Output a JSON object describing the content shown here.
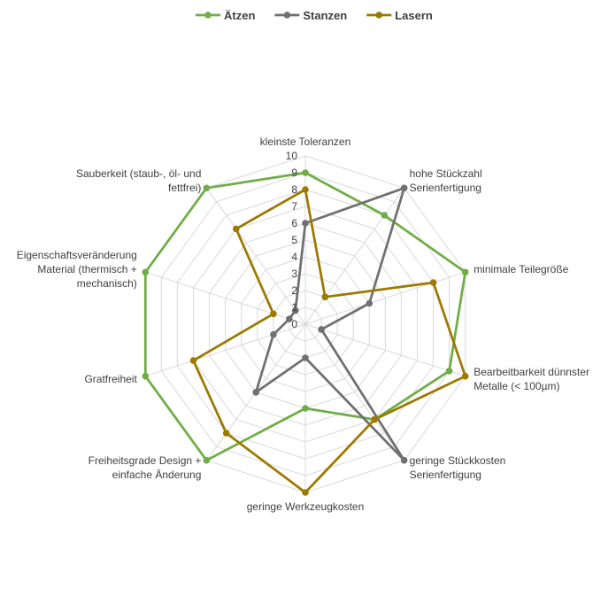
{
  "chart_data": {
    "type": "radar",
    "categories": [
      "kleinste Toleranzen",
      "hohe Stückzahl Serienfertigung",
      "minimale Teilegröße",
      "Bearbeitbarkeit dünnster Metalle (< 100µm)",
      "geringe Stückkosten Serienfertigung",
      "geringe Werkzeugkosten",
      "Freiheitsgrade Design + einfache Änderung",
      "Gratfreiheit",
      "Eigenschaftsveränderung Material (thermisch + mechanisch)",
      "Sauberkeit (staub-, öl- und fettfrei)"
    ],
    "category_lines": [
      [
        "kleinste Toleranzen"
      ],
      [
        "hohe Stückzahl",
        "Serienfertigung"
      ],
      [
        "minimale Teilegröße"
      ],
      [
        "Bearbeitbarkeit dünnster",
        "Metalle (< 100µm)"
      ],
      [
        "geringe Stückkosten",
        "Serienfertigung"
      ],
      [
        "geringe Werkzeugkosten"
      ],
      [
        "Freiheitsgrade Design +",
        "einfache Änderung"
      ],
      [
        "Gratfreiheit"
      ],
      [
        "Eigenschaftsveränderung",
        "Material (thermisch +",
        "mechanisch)"
      ],
      [
        "Sauberkeit (staub-, öl- und",
        "fettfrei)"
      ]
    ],
    "series": [
      {
        "name": "Ätzen",
        "color": "#70ad47",
        "values": [
          9,
          8,
          10,
          9,
          7,
          5,
          10,
          10,
          10,
          10
        ]
      },
      {
        "name": "Stanzen",
        "color": "#707070",
        "values": [
          6,
          10,
          4,
          1,
          10,
          2,
          5,
          2,
          1,
          1
        ]
      },
      {
        "name": "Lasern",
        "color": "#9c7a00",
        "values": [
          8,
          2,
          8,
          10,
          7,
          10,
          8,
          7,
          2,
          7
        ]
      }
    ],
    "rlim": [
      0,
      10
    ],
    "ticks": [
      "0",
      "1",
      "2",
      "3",
      "4",
      "5",
      "6",
      "7",
      "8",
      "9",
      "10"
    ],
    "legend_position": "top",
    "grid": true
  }
}
